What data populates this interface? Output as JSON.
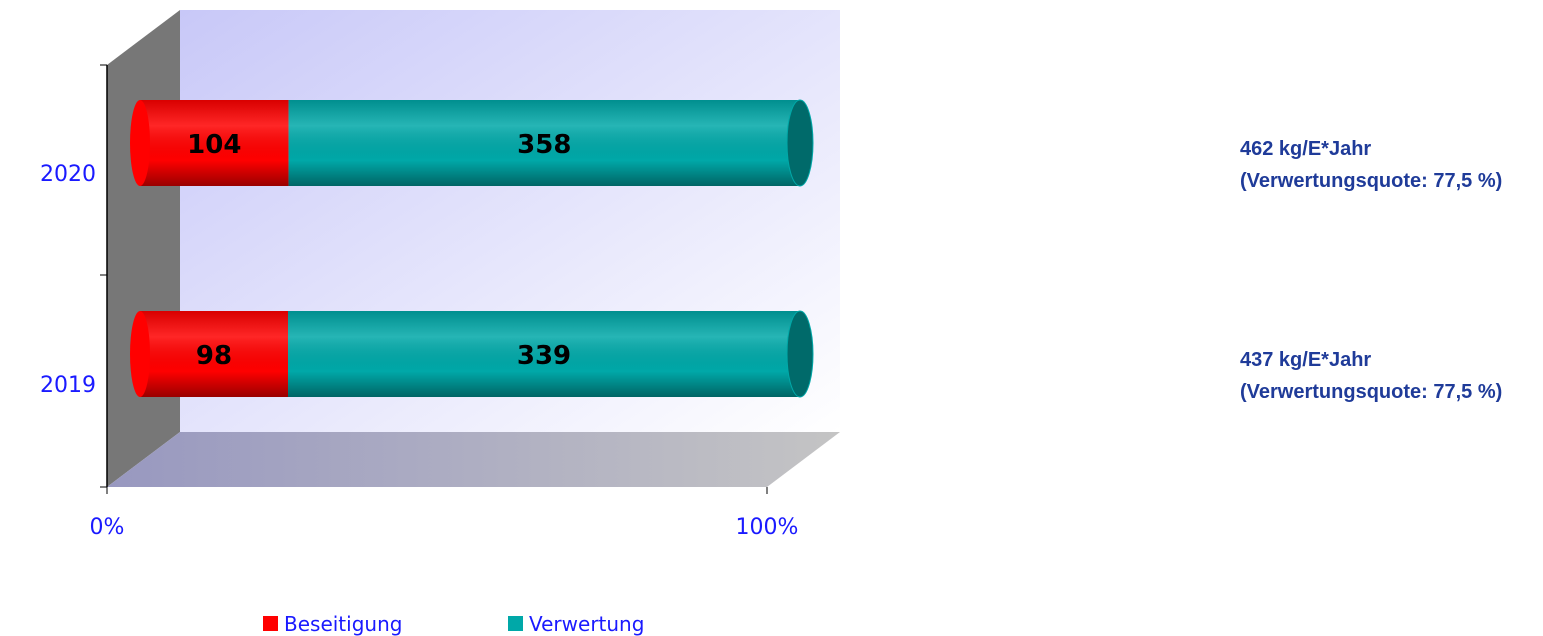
{
  "chart_data": {
    "type": "bar",
    "orientation": "horizontal",
    "stacked": "percent",
    "categories": [
      "2020",
      "2019"
    ],
    "series": [
      {
        "name": "Beseitigung",
        "color": "#ff0000",
        "values": [
          104,
          98
        ]
      },
      {
        "name": "Verwertung",
        "color": "#00a8a8",
        "values": [
          358,
          339
        ]
      }
    ],
    "xlim": [
      0,
      100
    ],
    "xticks": [
      {
        "value": 0,
        "label": "0%"
      },
      {
        "value": 100,
        "label": "100%"
      }
    ],
    "annotations": [
      [
        "462 kg/E*Jahr",
        "(Verwertungsquote: 77,5 %)"
      ],
      [
        "437 kg/E*Jahr",
        "(Verwertungsquote: 77,5 %)"
      ]
    ],
    "legend": "bottom"
  }
}
